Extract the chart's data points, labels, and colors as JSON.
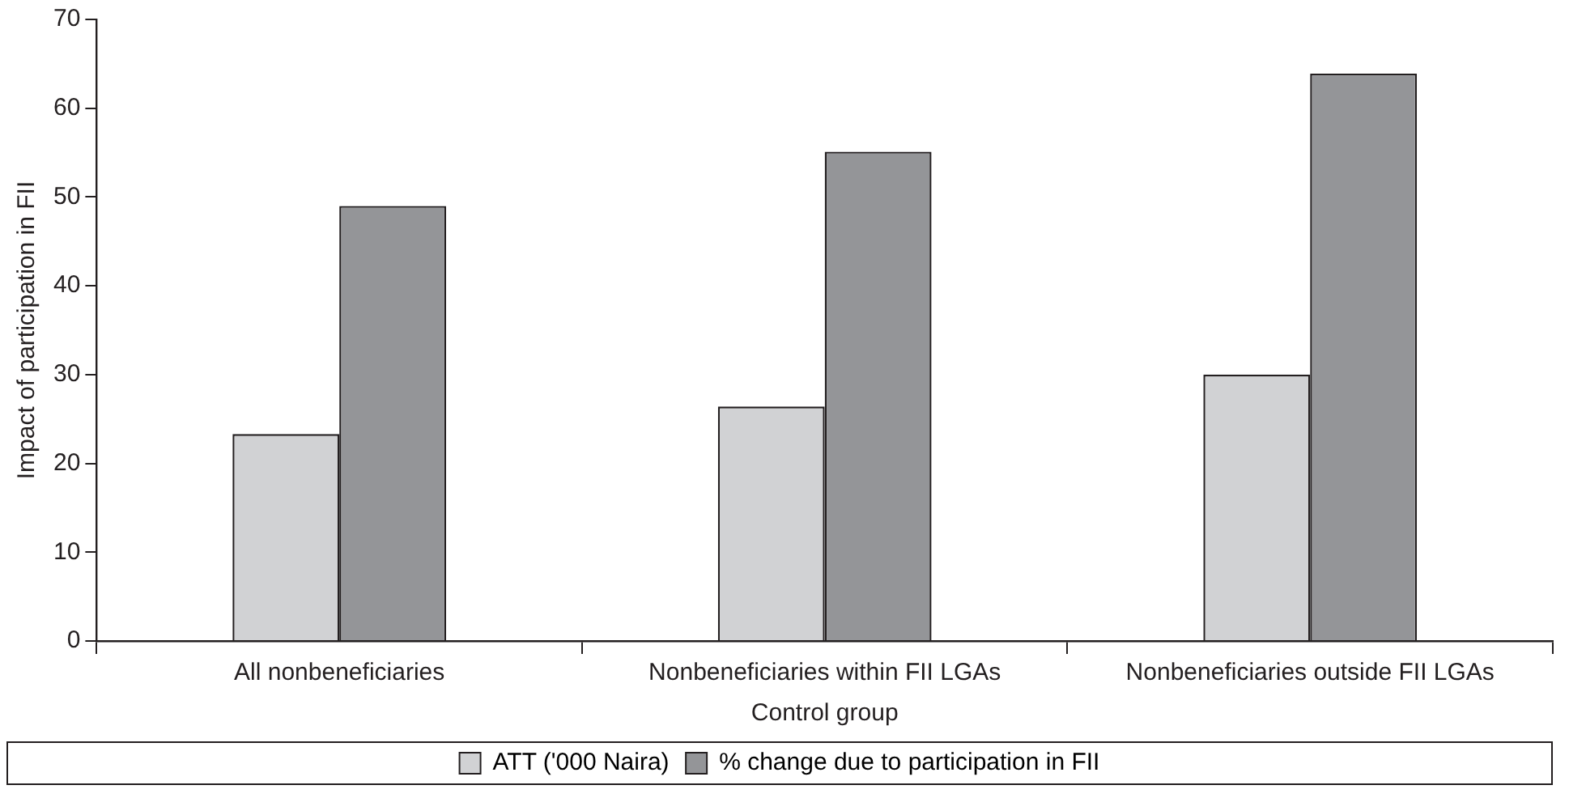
{
  "chart_data": {
    "type": "bar",
    "xlabel": "Control group",
    "ylabel": "Impact of participation in FII",
    "categories": [
      "All nonbeneficiaries",
      "Nonbeneficiaries within FII LGAs",
      "Nonbeneficiaries outside FII LGAs"
    ],
    "series": [
      {
        "name": "ATT ('000 Naira)",
        "color": "#d1d2d4",
        "values": [
          23.3,
          26.4,
          30.0
        ]
      },
      {
        "name": "% change due to participation in FII",
        "color": "#949598",
        "values": [
          49.0,
          55.1,
          63.9
        ]
      }
    ],
    "ylim": [
      0,
      70
    ],
    "yticks": [
      0,
      10,
      20,
      30,
      40,
      50,
      60,
      70
    ],
    "grid": false,
    "legend": "bottom"
  }
}
